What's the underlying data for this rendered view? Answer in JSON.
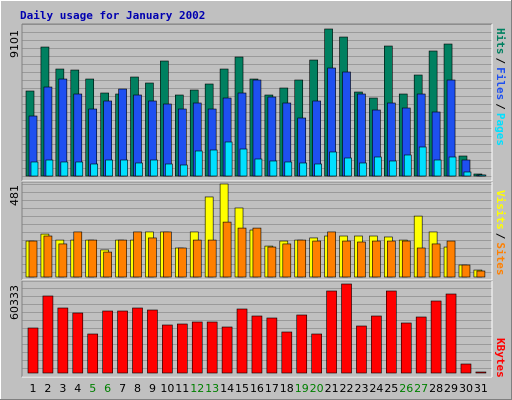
{
  "chart_data": {
    "type": "bar",
    "title": "Daily usage for January 2002",
    "categories": [
      "1",
      "2",
      "3",
      "4",
      "5",
      "6",
      "7",
      "8",
      "9",
      "10",
      "11",
      "12",
      "13",
      "14",
      "15",
      "16",
      "17",
      "18",
      "19",
      "20",
      "21",
      "22",
      "23",
      "24",
      "25",
      "26",
      "27",
      "28",
      "29",
      "30",
      "31"
    ],
    "category_colors": [
      "#000000",
      "#000000",
      "#000000",
      "#000000",
      "#008000",
      "#008000",
      "#000000",
      "#000000",
      "#000000",
      "#000000",
      "#000000",
      "#008000",
      "#008000",
      "#000000",
      "#000000",
      "#000000",
      "#000000",
      "#000000",
      "#008000",
      "#008000",
      "#000000",
      "#000000",
      "#000000",
      "#000000",
      "#000000",
      "#008000",
      "#008000",
      "#000000",
      "#000000",
      "#000000",
      "#000000"
    ],
    "separator": "/",
    "panels": [
      {
        "ylim": [
          0,
          9101
        ],
        "yticks": [
          9101
        ],
        "series": [
          {
            "name": "Hits",
            "color": "#008060",
            "values": [
              5262,
              7985,
              6623,
              6561,
              6004,
              5138,
              5076,
              6128,
              5757,
              7119,
              5014,
              5323,
              5695,
              6623,
              7366,
              6004,
              5014,
              5447,
              5942,
              7180,
              9101,
              8604,
              5200,
              4828,
              8047,
              5076,
              6252,
              7738,
              8171,
              1238,
              124
            ]
          },
          {
            "name": "Files",
            "color": "#1e50f0",
            "values": [
              3714,
              5509,
              6004,
              5076,
              4147,
              4643,
              5385,
              5014,
              4643,
              4457,
              4147,
              4519,
              4147,
              4828,
              5138,
              5942,
              4890,
              4519,
              3590,
              4643,
              6685,
              6438,
              5076,
              4085,
              4519,
              4209,
              5076,
              3962,
              5942,
              990,
              62
            ]
          },
          {
            "name": "Pages",
            "color": "#00e0ff",
            "values": [
              867,
              990,
              867,
              867,
              743,
              990,
              990,
              805,
              990,
              743,
              681,
              1548,
              1609,
              2105,
              1671,
              1052,
              929,
              867,
              805,
              743,
              1486,
              1114,
              805,
              1176,
              929,
              1300,
              1795,
              990,
              1176,
              248,
              62
            ]
          }
        ]
      },
      {
        "ylim": [
          0,
          481
        ],
        "yticks": [
          481
        ],
        "series": [
          {
            "name": "Visits",
            "color": "#ffff00",
            "values": [
              186,
              222,
              191,
              191,
              191,
              140,
              191,
              191,
              233,
              233,
              150,
              233,
              414,
              481,
              357,
              243,
              160,
              186,
              191,
              202,
              212,
              212,
              212,
              212,
              207,
              191,
              315,
              233,
              155,
              62,
              36
            ]
          },
          {
            "name": "Sites",
            "color": "#ff8000",
            "values": [
              186,
              212,
              171,
              233,
              191,
              129,
              191,
              233,
              202,
              233,
              150,
              191,
              191,
              284,
              253,
              253,
              155,
              171,
              191,
              186,
              233,
              186,
              181,
              186,
              186,
              186,
              150,
              171,
              186,
              62,
              31
            ]
          }
        ]
      },
      {
        "ylim": [
          0,
          60333
        ],
        "yticks": [
          60333
        ],
        "series": [
          {
            "name": "KBytes",
            "color": "#ff0000",
            "values": [
              30506,
              52198,
              44064,
              40674,
              26438,
              42030,
              42030,
              44064,
              42708,
              32539,
              33217,
              34573,
              34573,
              31183,
              43386,
              38640,
              37285,
              27794,
              39318,
              26438,
              55588,
              60333,
              31861,
              38640,
              55588,
              33895,
              37962,
              48809,
              53554,
              6101,
              678
            ]
          }
        ]
      }
    ]
  }
}
